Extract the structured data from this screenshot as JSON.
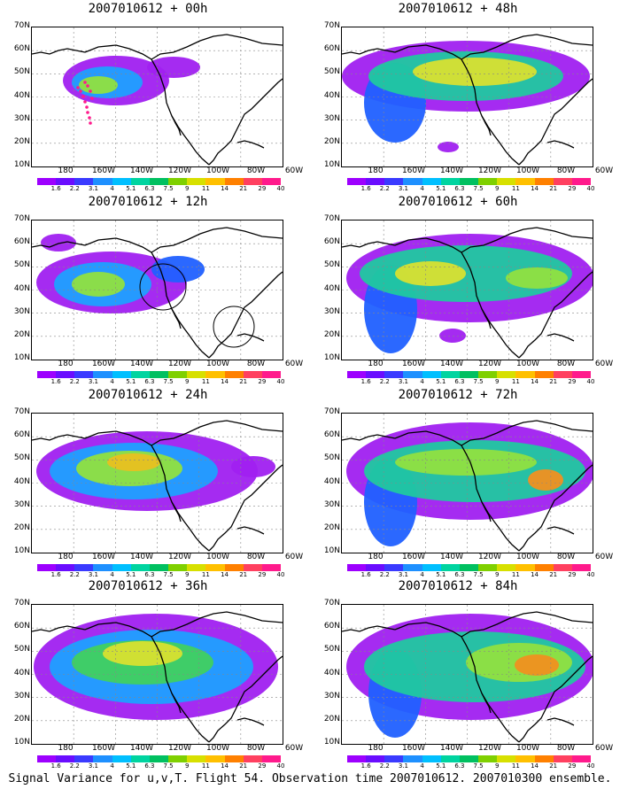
{
  "panels": [
    {
      "title": "2007010612 + 00h",
      "blobs": [
        {
          "cx": 95,
          "cy": 60,
          "rx": 60,
          "ry": 28,
          "lvl": 0
        },
        {
          "cx": 85,
          "cy": 62,
          "rx": 40,
          "ry": 18,
          "lvl": 2
        },
        {
          "cx": 75,
          "cy": 65,
          "rx": 22,
          "ry": 10,
          "lvl": 5
        },
        {
          "cx": 160,
          "cy": 45,
          "rx": 30,
          "ry": 12,
          "lvl": 0
        }
      ],
      "dots": true,
      "circles": []
    },
    {
      "title": "2007010612 + 48h",
      "blobs": [
        {
          "cx": 140,
          "cy": 55,
          "rx": 140,
          "ry": 40,
          "lvl": 0
        },
        {
          "cx": 60,
          "cy": 85,
          "rx": 35,
          "ry": 45,
          "lvl": 1
        },
        {
          "cx": 140,
          "cy": 55,
          "rx": 110,
          "ry": 28,
          "lvl": 3
        },
        {
          "cx": 150,
          "cy": 50,
          "rx": 70,
          "ry": 16,
          "lvl": 6
        },
        {
          "cx": 120,
          "cy": 135,
          "rx": 12,
          "ry": 6,
          "lvl": 0
        }
      ],
      "dots": false,
      "circles": []
    },
    {
      "title": "2007010612 + 12h",
      "blobs": [
        {
          "cx": 90,
          "cy": 70,
          "rx": 85,
          "ry": 35,
          "lvl": 0
        },
        {
          "cx": 80,
          "cy": 72,
          "rx": 55,
          "ry": 25,
          "lvl": 2
        },
        {
          "cx": 75,
          "cy": 72,
          "rx": 30,
          "ry": 14,
          "lvl": 5
        },
        {
          "cx": 30,
          "cy": 25,
          "rx": 20,
          "ry": 10,
          "lvl": 0
        },
        {
          "cx": 165,
          "cy": 55,
          "rx": 30,
          "ry": 15,
          "lvl": 1
        }
      ],
      "dots": false,
      "circles": [
        {
          "cx": 148,
          "cy": 75,
          "r": 26
        },
        {
          "cx": 228,
          "cy": 120,
          "r": 23
        }
      ]
    },
    {
      "title": "2007010612 + 60h",
      "blobs": [
        {
          "cx": 145,
          "cy": 65,
          "rx": 140,
          "ry": 50,
          "lvl": 0
        },
        {
          "cx": 55,
          "cy": 100,
          "rx": 30,
          "ry": 50,
          "lvl": 1
        },
        {
          "cx": 140,
          "cy": 60,
          "rx": 120,
          "ry": 32,
          "lvl": 3
        },
        {
          "cx": 100,
          "cy": 60,
          "rx": 40,
          "ry": 14,
          "lvl": 6
        },
        {
          "cx": 220,
          "cy": 65,
          "rx": 35,
          "ry": 12,
          "lvl": 5
        },
        {
          "cx": 125,
          "cy": 130,
          "rx": 15,
          "ry": 8,
          "lvl": 0
        }
      ],
      "dots": false,
      "circles": []
    },
    {
      "title": "2007010612 + 24h",
      "blobs": [
        {
          "cx": 130,
          "cy": 65,
          "rx": 125,
          "ry": 45,
          "lvl": 0
        },
        {
          "cx": 115,
          "cy": 65,
          "rx": 95,
          "ry": 32,
          "lvl": 2
        },
        {
          "cx": 110,
          "cy": 62,
          "rx": 60,
          "ry": 20,
          "lvl": 5
        },
        {
          "cx": 115,
          "cy": 55,
          "rx": 30,
          "ry": 10,
          "lvl": 7
        },
        {
          "cx": 250,
          "cy": 60,
          "rx": 25,
          "ry": 12,
          "lvl": 0
        }
      ],
      "dots": false,
      "circles": []
    },
    {
      "title": "2007010612 + 72h",
      "blobs": [
        {
          "cx": 145,
          "cy": 65,
          "rx": 140,
          "ry": 55,
          "lvl": 0
        },
        {
          "cx": 55,
          "cy": 100,
          "rx": 30,
          "ry": 50,
          "lvl": 1
        },
        {
          "cx": 150,
          "cy": 65,
          "rx": 125,
          "ry": 35,
          "lvl": 3
        },
        {
          "cx": 140,
          "cy": 55,
          "rx": 80,
          "ry": 15,
          "lvl": 5
        },
        {
          "cx": 230,
          "cy": 75,
          "rx": 20,
          "ry": 12,
          "lvl": 8
        }
      ],
      "dots": false,
      "circles": []
    },
    {
      "title": "2007010612 + 36h",
      "blobs": [
        {
          "cx": 140,
          "cy": 70,
          "rx": 138,
          "ry": 60,
          "lvl": 0
        },
        {
          "cx": 135,
          "cy": 70,
          "rx": 115,
          "ry": 42,
          "lvl": 2
        },
        {
          "cx": 125,
          "cy": 65,
          "rx": 80,
          "ry": 25,
          "lvl": 4
        },
        {
          "cx": 125,
          "cy": 55,
          "rx": 45,
          "ry": 14,
          "lvl": 6
        }
      ],
      "dots": false,
      "circles": []
    },
    {
      "title": "2007010612 + 84h",
      "blobs": [
        {
          "cx": 145,
          "cy": 70,
          "rx": 140,
          "ry": 60,
          "lvl": 0
        },
        {
          "cx": 60,
          "cy": 100,
          "rx": 30,
          "ry": 50,
          "lvl": 1
        },
        {
          "cx": 150,
          "cy": 70,
          "rx": 125,
          "ry": 40,
          "lvl": 3
        },
        {
          "cx": 200,
          "cy": 65,
          "rx": 60,
          "ry": 22,
          "lvl": 5
        },
        {
          "cx": 220,
          "cy": 68,
          "rx": 25,
          "ry": 12,
          "lvl": 8
        }
      ],
      "dots": false,
      "circles": []
    }
  ],
  "lat_labels": [
    "70N",
    "60N",
    "50N",
    "40N",
    "30N",
    "20N",
    "10N"
  ],
  "lon_labels": [
    "180",
    "160W",
    "140W",
    "120W",
    "100W",
    "80W",
    "60W"
  ],
  "colorbar_values": [
    "1.6",
    "2.2",
    "3.1",
    "4",
    "5.1",
    "6.3",
    "7.5",
    "9",
    "11",
    "14",
    "21",
    "29",
    "40"
  ],
  "colorbar_colors": [
    "#9d00ff",
    "#6a0dff",
    "#3a3aff",
    "#1e90ff",
    "#00bfff",
    "#00d4a0",
    "#00c060",
    "#7fd000",
    "#d7e000",
    "#ffc000",
    "#ff8000",
    "#ff4060",
    "#ff1a8c"
  ],
  "footer": "Signal Variance for u,v,T. Flight 54. Observation time 2007010612. 2007010300 ensemble."
}
